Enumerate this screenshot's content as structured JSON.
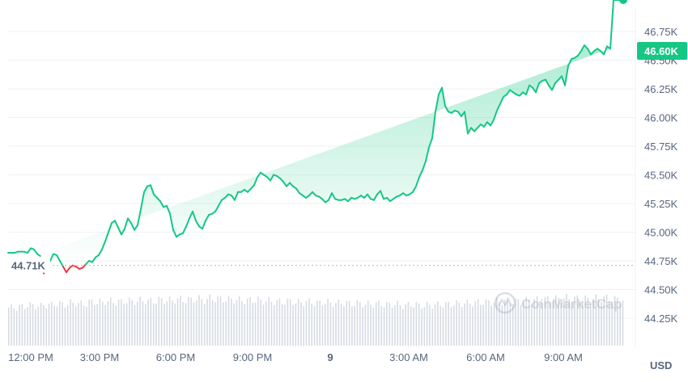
{
  "chart_data": {
    "type": "area",
    "price_line": {
      "x": [
        0,
        4,
        8,
        12,
        16,
        20,
        24,
        28,
        32,
        36,
        40,
        44,
        48,
        52,
        56,
        60,
        64,
        68,
        72,
        76,
        80,
        84,
        88,
        92,
        96,
        100,
        104,
        108,
        112,
        116,
        120,
        124,
        128,
        132,
        136,
        140,
        144,
        148,
        152,
        156,
        160,
        164,
        168,
        172,
        176,
        180,
        184,
        188,
        192,
        196,
        200,
        204,
        208,
        212,
        216,
        220,
        224,
        228,
        232,
        236,
        240,
        244,
        248,
        252,
        256,
        260,
        264,
        268,
        272,
        276,
        280,
        284,
        288,
        292,
        296,
        300,
        304,
        308,
        312,
        316,
        320,
        324,
        328,
        332,
        336,
        340,
        344,
        348,
        352,
        356,
        360,
        364,
        368,
        372,
        376,
        380,
        384,
        388,
        392,
        396,
        400,
        404,
        408,
        412,
        416,
        420,
        424,
        428,
        432,
        436,
        440,
        444,
        448,
        452,
        456,
        460,
        464,
        468,
        472,
        476,
        480,
        484,
        488,
        492,
        496,
        500,
        504,
        508,
        512,
        516,
        520,
        524,
        528,
        532,
        536,
        540,
        544,
        548,
        552,
        556,
        560,
        564,
        568,
        572,
        576,
        580,
        584,
        588,
        592,
        596,
        600,
        604,
        608,
        612,
        616,
        620,
        624,
        628,
        632,
        636,
        640,
        644,
        648,
        652,
        656,
        660,
        664,
        668,
        672,
        676,
        680,
        684,
        688,
        692,
        696,
        700,
        704,
        708,
        712,
        716,
        720,
        724,
        728,
        732,
        736,
        740,
        744,
        748,
        752,
        756,
        760
      ],
      "price": [
        44.82,
        44.82,
        44.82,
        44.83,
        44.83,
        44.83,
        44.82,
        44.86,
        44.85,
        44.81,
        44.79,
        44.64,
        44.7,
        44.75,
        44.81,
        44.8,
        44.75,
        44.7,
        44.65,
        44.69,
        44.71,
        44.7,
        44.68,
        44.69,
        44.72,
        44.75,
        44.74,
        44.78,
        44.8,
        44.85,
        44.92,
        45.0,
        45.08,
        45.1,
        45.04,
        44.98,
        45.03,
        45.12,
        45.08,
        45.02,
        45.06,
        45.2,
        45.35,
        45.4,
        45.41,
        45.33,
        45.3,
        45.27,
        45.22,
        45.23,
        45.16,
        45.02,
        44.96,
        44.98,
        44.99,
        45.05,
        45.12,
        45.18,
        45.1,
        45.05,
        45.03,
        45.1,
        45.15,
        45.16,
        45.18,
        45.23,
        45.28,
        45.3,
        45.33,
        45.32,
        45.28,
        45.35,
        45.35,
        45.37,
        45.35,
        45.38,
        45.41,
        45.48,
        45.52,
        45.5,
        45.48,
        45.45,
        45.5,
        45.49,
        45.47,
        45.44,
        45.4,
        45.43,
        45.4,
        45.38,
        45.34,
        45.32,
        45.3,
        45.32,
        45.35,
        45.32,
        45.31,
        45.29,
        45.26,
        45.28,
        45.34,
        45.29,
        45.28,
        45.28,
        45.29,
        45.27,
        45.3,
        45.29,
        45.3,
        45.32,
        45.3,
        45.33,
        45.29,
        45.28,
        45.33,
        45.36,
        45.29,
        45.3,
        45.27,
        45.29,
        45.31,
        45.32,
        45.34,
        45.32,
        45.33,
        45.35,
        45.4,
        45.48,
        45.54,
        45.62,
        45.74,
        45.82,
        46.05,
        46.2,
        46.26,
        46.1,
        46.05,
        46.04,
        46.06,
        46.05,
        46.01,
        46.05,
        45.86,
        45.91,
        45.88,
        45.91,
        45.94,
        45.92,
        45.96,
        45.93,
        45.98,
        46.06,
        46.12,
        46.18,
        46.2,
        46.24,
        46.22,
        46.2,
        46.19,
        46.22,
        46.2,
        46.28,
        46.26,
        46.22,
        46.3,
        46.32,
        46.33,
        46.28,
        46.24,
        46.3,
        46.33,
        46.36,
        46.28,
        46.45,
        46.51,
        46.52,
        46.54,
        46.58,
        46.63,
        46.6,
        46.55,
        46.58,
        46.6,
        46.58,
        46.55,
        46.62,
        46.6
      ]
    },
    "y_ticks": [
      "46.75K",
      "46.50K",
      "46.25K",
      "46.00K",
      "45.75K",
      "45.50K",
      "45.25K",
      "45.00K",
      "44.75K",
      "44.50K",
      "44.25K"
    ],
    "y_range": [
      44.1,
      46.85
    ],
    "x_ticks": [
      "12:00 PM",
      "3:00 PM",
      "6:00 PM",
      "9:00 PM",
      "9",
      "3:00 AM",
      "6:00 AM",
      "9:00 AM"
    ],
    "baseline_value": 44.71,
    "baseline_label": "44.71K",
    "current_label": "46.60K",
    "currency_label": "USD",
    "watermark": "CoinMarketCap",
    "colors": {
      "up": "#16c784",
      "down": "#ea3943"
    },
    "volume": [
      0.8,
      0.82,
      0.85,
      0.83,
      0.86,
      0.88,
      0.87,
      0.9,
      0.88,
      0.92,
      0.91,
      0.93,
      0.92,
      0.94,
      0.93,
      0.95,
      0.94,
      0.96,
      0.95,
      0.97,
      0.96,
      0.98,
      0.97,
      0.99,
      0.98,
      0.97,
      0.96,
      0.95,
      0.96,
      0.94,
      0.93,
      0.92,
      0.93,
      0.91,
      0.92,
      0.9,
      0.91,
      0.89,
      0.9,
      0.88,
      0.89,
      0.87,
      0.88,
      0.86,
      0.87,
      0.85,
      0.86,
      0.84,
      0.85,
      0.86,
      0.87,
      0.88,
      0.89,
      0.9,
      0.91,
      0.92,
      0.93,
      0.94,
      0.93,
      0.95,
      0.96,
      0.97,
      0.98,
      0.99,
      1.0,
      0.99,
      0.98,
      0.99,
      1.0,
      0.98,
      0.97
    ]
  }
}
